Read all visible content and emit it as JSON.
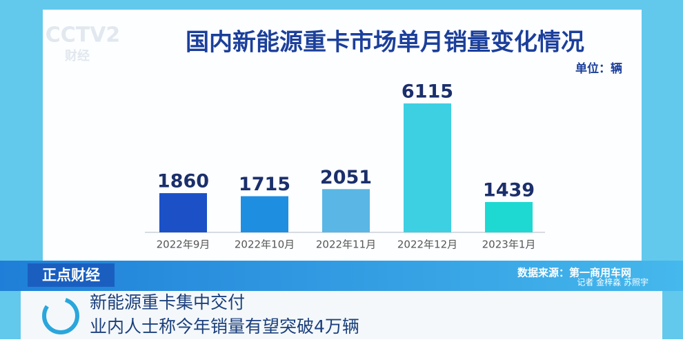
{
  "logo": {
    "channel": "CCTV2",
    "name": "财经"
  },
  "chart_data": {
    "type": "bar",
    "title": "国内新能源重卡市场单月销量变化情况",
    "unit": "单位：辆",
    "categories": [
      "2022年9月",
      "2022年10月",
      "2022年11月",
      "2022年12月",
      "2023年1月"
    ],
    "values": [
      1860,
      1715,
      2051,
      6115,
      1439
    ],
    "colors": [
      "#1b50c6",
      "#1e8fe0",
      "#5ab6e4",
      "#3dcfe2",
      "#1ed8d2"
    ]
  },
  "program": "正点财经",
  "source": "数据来源：第一商用车网",
  "reporter": "记者 金梓淼 苏照宇",
  "headline": [
    "新能源重卡集中交付",
    "业内人士称今年销量有望突破4万辆"
  ]
}
